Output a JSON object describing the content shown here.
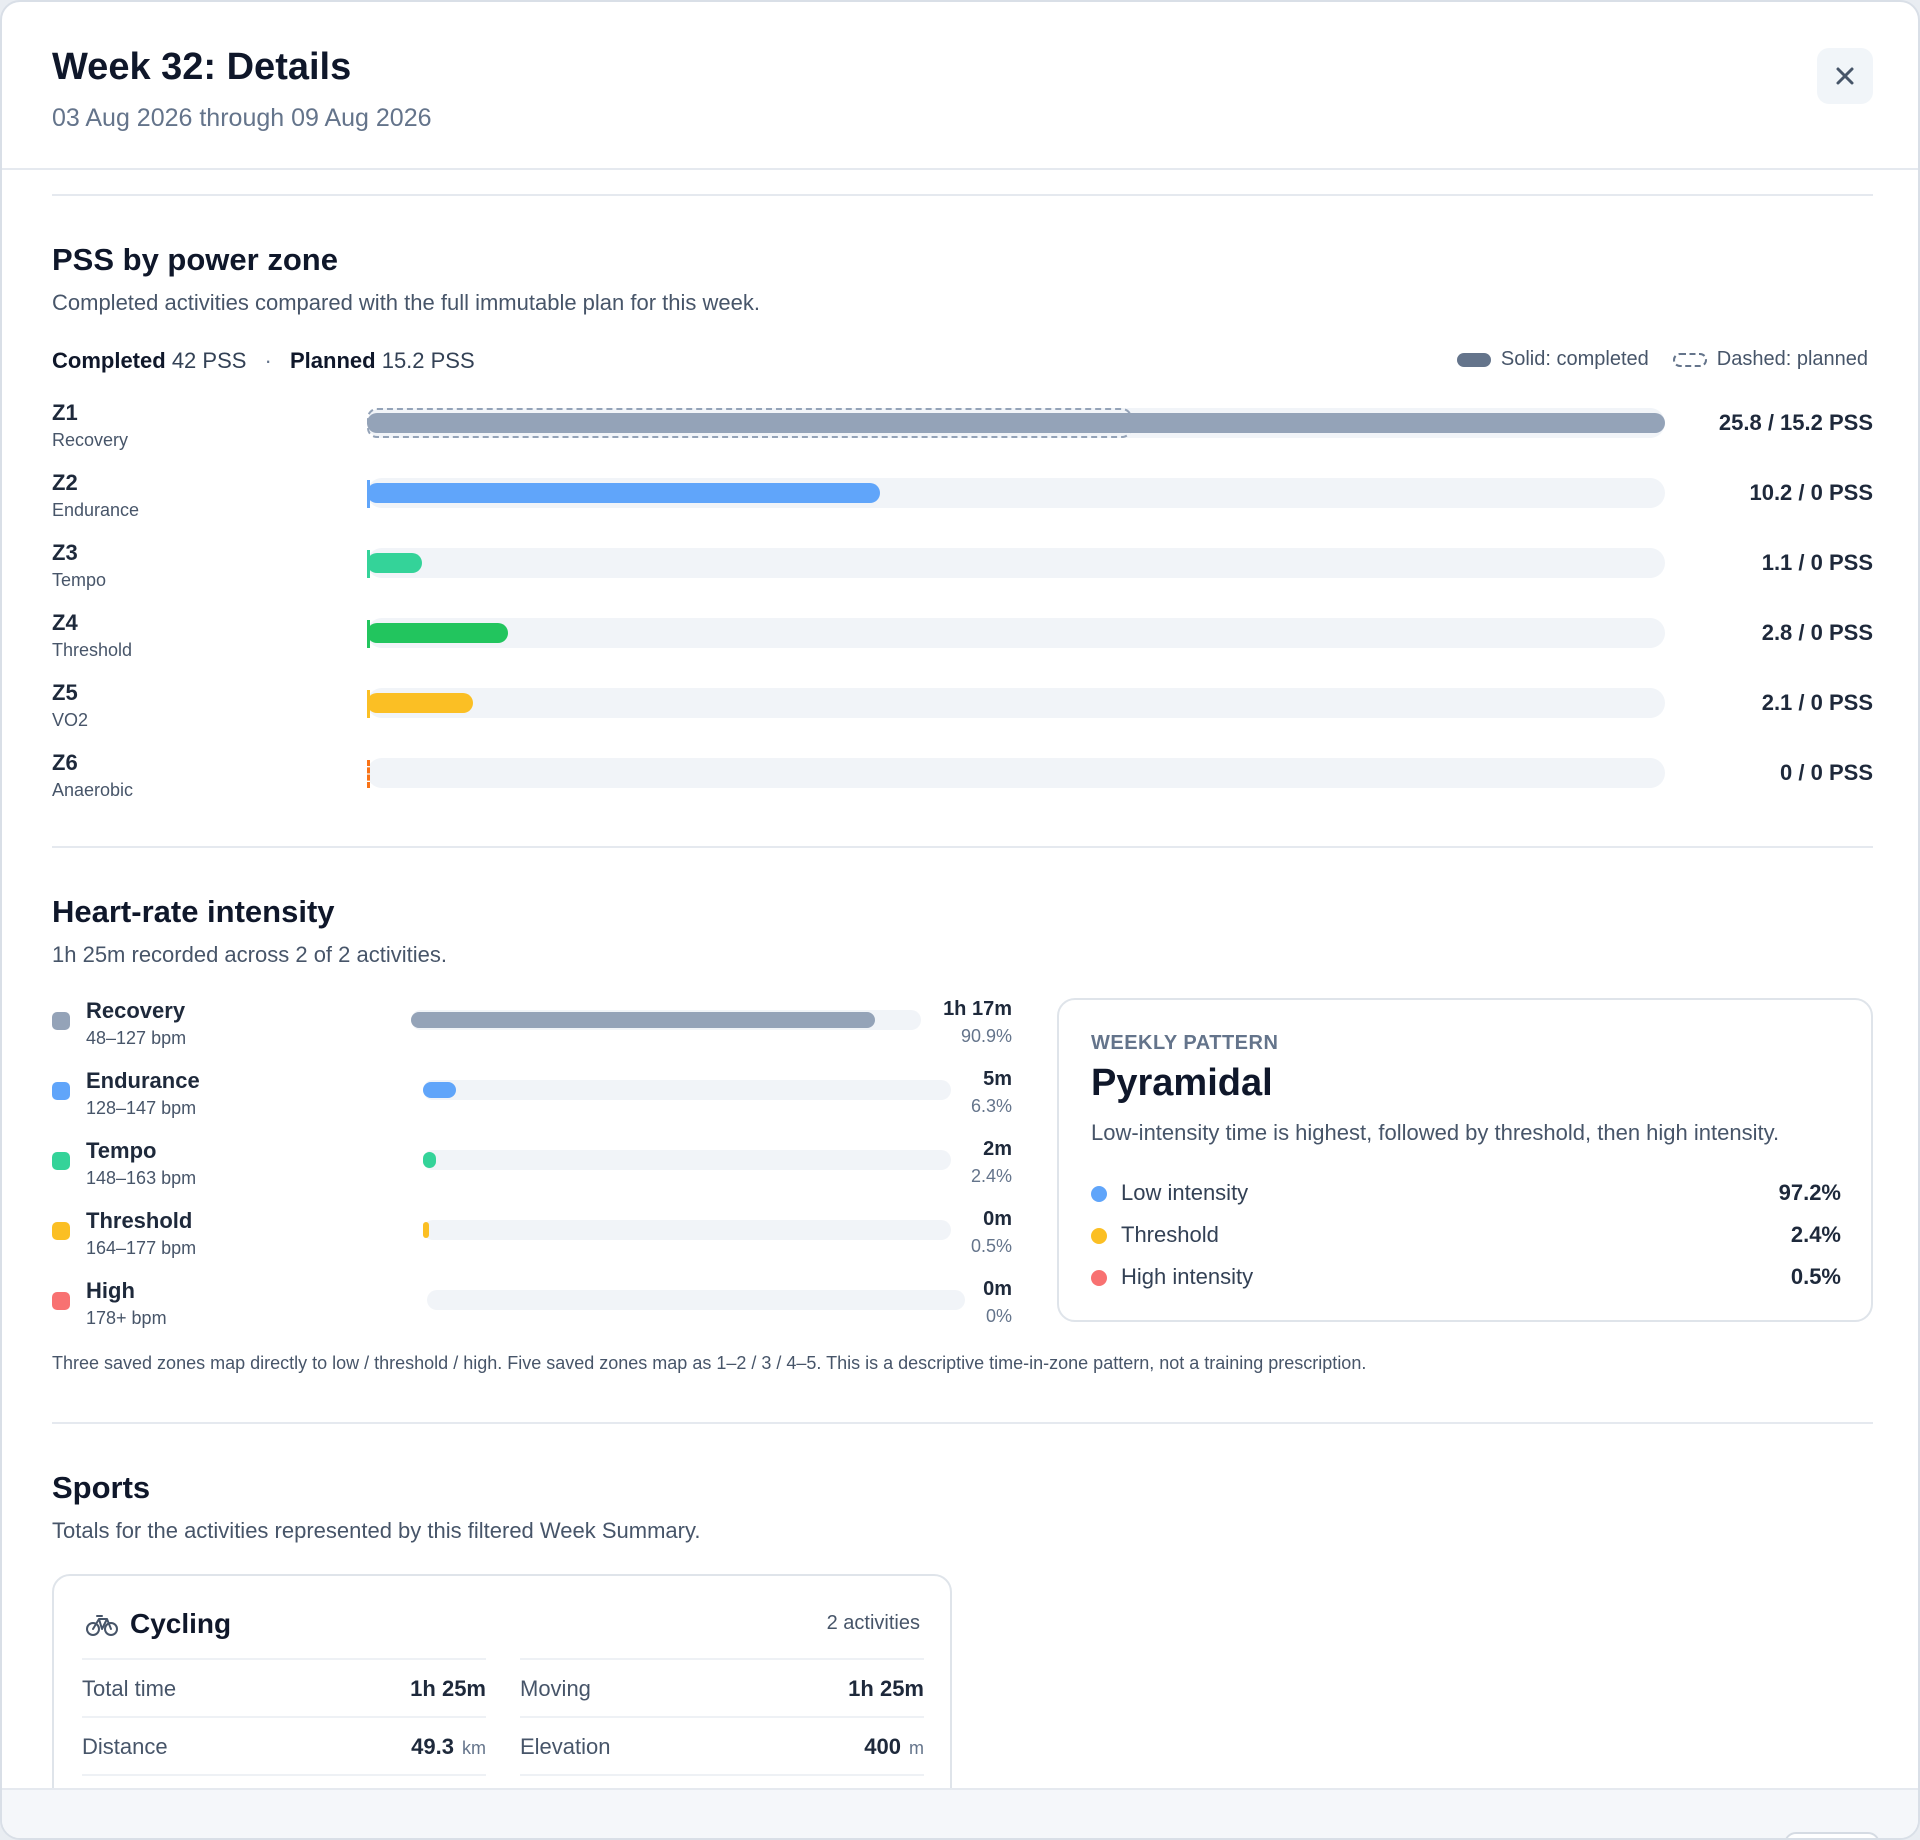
{
  "header": {
    "title": "Week 32: Details",
    "date_range": "03 Aug 2026 through 09 Aug 2026"
  },
  "pss": {
    "title": "PSS by power zone",
    "description": "Completed activities compared with the full immutable plan for this week.",
    "completed_label": "Completed",
    "completed_value": "42 PSS",
    "planned_label": "Planned",
    "planned_value": "15.2 PSS",
    "separator": "·",
    "legend_solid": "Solid: completed",
    "legend_dashed": "Dashed: planned",
    "scale_max": 25.8,
    "zones": [
      {
        "code": "Z1",
        "name": "Recovery",
        "completed": 25.8,
        "planned": 15.2,
        "value_text": "25.8 / 15.2 PSS",
        "color": "#94a3b8"
      },
      {
        "code": "Z2",
        "name": "Endurance",
        "completed": 10.2,
        "planned": 0,
        "value_text": "10.2 / 0 PSS",
        "color": "#60a5fa"
      },
      {
        "code": "Z3",
        "name": "Tempo",
        "completed": 1.1,
        "planned": 0,
        "value_text": "1.1 / 0 PSS",
        "color": "#34d399"
      },
      {
        "code": "Z4",
        "name": "Threshold",
        "completed": 2.8,
        "planned": 0,
        "value_text": "2.8 / 0 PSS",
        "color": "#22c55e"
      },
      {
        "code": "Z5",
        "name": "VO2",
        "completed": 2.1,
        "planned": 0,
        "value_text": "2.1 / 0 PSS",
        "color": "#fbbf24"
      },
      {
        "code": "Z6",
        "name": "Anaerobic",
        "completed": 0,
        "planned": 0,
        "value_text": "0 / 0 PSS",
        "color": "#f97316"
      }
    ]
  },
  "heart_rate": {
    "title": "Heart-rate intensity",
    "description": "1h 25m recorded across 2 of 2 activities.",
    "zones": [
      {
        "name": "Recovery",
        "range": "48–127 bpm",
        "time": "1h 17m",
        "percent": "90.9%",
        "fraction": 0.909,
        "color": "#94a3b8"
      },
      {
        "name": "Endurance",
        "range": "128–147 bpm",
        "time": "5m",
        "percent": "6.3%",
        "fraction": 0.063,
        "color": "#60a5fa"
      },
      {
        "name": "Tempo",
        "range": "148–163 bpm",
        "time": "2m",
        "percent": "2.4%",
        "fraction": 0.024,
        "color": "#34d399"
      },
      {
        "name": "Threshold",
        "range": "164–177 bpm",
        "time": "0m",
        "percent": "0.5%",
        "fraction": 0.005,
        "color": "#fbbf24"
      },
      {
        "name": "High",
        "range": "178+ bpm",
        "time": "0m",
        "percent": "0%",
        "fraction": 0,
        "color": "#f87171"
      }
    ],
    "pattern": {
      "kicker": "WEEKLY PATTERN",
      "title": "Pyramidal",
      "description": "Low-intensity time is highest, followed by threshold, then high intensity.",
      "rows": [
        {
          "label": "Low intensity",
          "value": "97.2%",
          "color": "#60a5fa"
        },
        {
          "label": "Threshold",
          "value": "2.4%",
          "color": "#fbbf24"
        },
        {
          "label": "High intensity",
          "value": "0.5%",
          "color": "#f87171"
        }
      ]
    },
    "footnote": "Three saved zones map directly to low / threshold / high. Five saved zones map as 1–2 / 3 / 4–5. This is a descriptive time-in-zone pattern, not a training prescription."
  },
  "sports": {
    "title": "Sports",
    "description": "Totals for the activities represented by this filtered Week Summary.",
    "card": {
      "icon": "bicycle-icon",
      "name": "Cycling",
      "count": "2 activities",
      "stats": {
        "total_time_label": "Total time",
        "total_time_value": "1h 25m",
        "moving_label": "Moving",
        "moving_value": "1h 25m",
        "distance_label": "Distance",
        "distance_value": "49.3",
        "distance_unit": "km",
        "elevation_label": "Elevation",
        "elevation_value": "400",
        "elevation_unit": "m"
      }
    }
  }
}
